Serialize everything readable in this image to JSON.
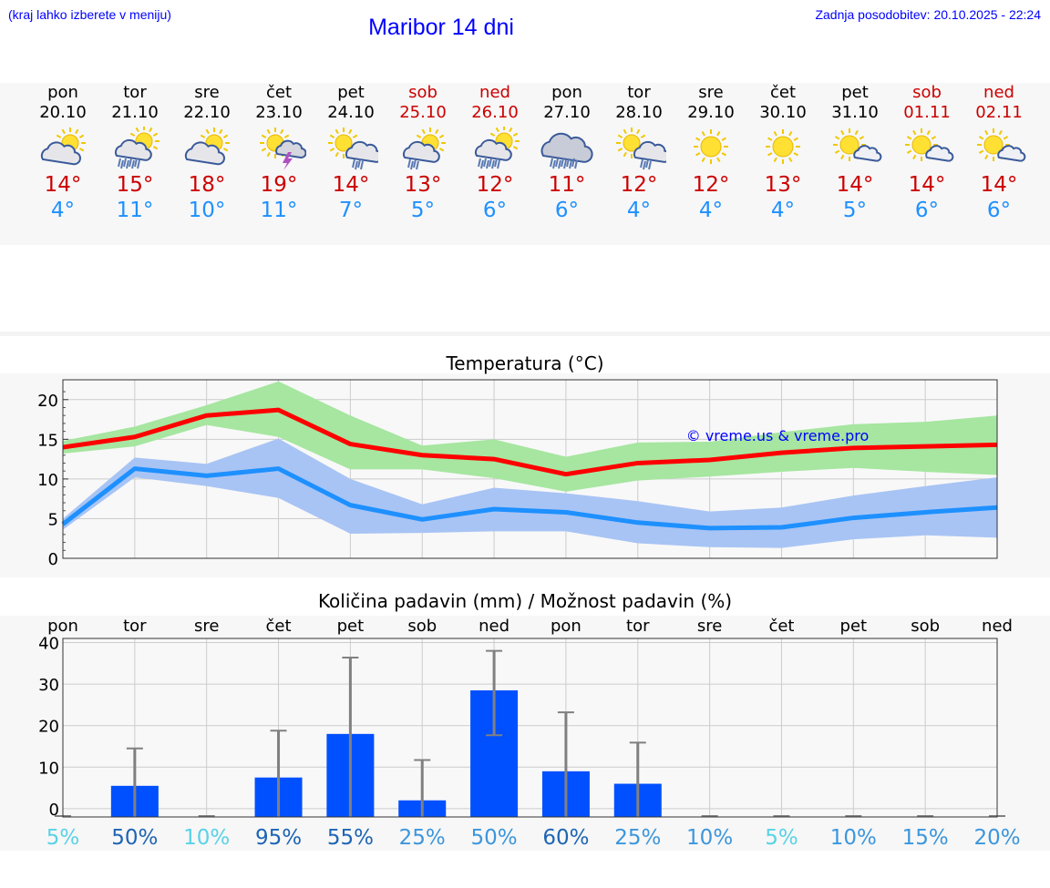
{
  "header": {
    "menu_hint": "(kraj lahko izberete v meniju)",
    "title": "Maribor 14 dni",
    "last_update": "Zadnja posodobitev: 20.10.2025 - 22:24"
  },
  "days": [
    {
      "name": "pon",
      "date": "20.10",
      "weekend": false,
      "icon": "partly-cloudy-icon",
      "max": "14°",
      "min": "4°"
    },
    {
      "name": "tor",
      "date": "21.10",
      "weekend": false,
      "icon": "cloudy-rain-sun-icon",
      "max": "15°",
      "min": "11°"
    },
    {
      "name": "sre",
      "date": "22.10",
      "weekend": false,
      "icon": "partly-cloudy-icon",
      "max": "18°",
      "min": "10°"
    },
    {
      "name": "čet",
      "date": "23.10",
      "weekend": false,
      "icon": "sun-thunderstorm-icon",
      "max": "19°",
      "min": "11°"
    },
    {
      "name": "pet",
      "date": "24.10",
      "weekend": false,
      "icon": "sun-cloud-rain-icon",
      "max": "14°",
      "min": "7°"
    },
    {
      "name": "sob",
      "date": "25.10",
      "weekend": true,
      "icon": "sun-cloud-light-rain-icon",
      "max": "13°",
      "min": "5°"
    },
    {
      "name": "ned",
      "date": "26.10",
      "weekend": true,
      "icon": "cloudy-rain-sun-icon",
      "max": "12°",
      "min": "6°"
    },
    {
      "name": "pon",
      "date": "27.10",
      "weekend": false,
      "icon": "heavy-rain-icon",
      "max": "11°",
      "min": "6°"
    },
    {
      "name": "tor",
      "date": "28.10",
      "weekend": false,
      "icon": "sun-cloud-rain-icon",
      "max": "12°",
      "min": "4°"
    },
    {
      "name": "sre",
      "date": "29.10",
      "weekend": false,
      "icon": "sun-icon",
      "max": "12°",
      "min": "4°"
    },
    {
      "name": "čet",
      "date": "30.10",
      "weekend": false,
      "icon": "sun-icon",
      "max": "13°",
      "min": "4°"
    },
    {
      "name": "pet",
      "date": "31.10",
      "weekend": false,
      "icon": "sun-small-cloud-icon",
      "max": "14°",
      "min": "5°"
    },
    {
      "name": "sob",
      "date": "01.11",
      "weekend": true,
      "icon": "sun-small-cloud-icon",
      "max": "14°",
      "min": "6°"
    },
    {
      "name": "ned",
      "date": "02.11",
      "weekend": true,
      "icon": "sun-small-cloud-icon",
      "max": "14°",
      "min": "6°"
    }
  ],
  "chart_data": [
    {
      "type": "line",
      "title": "Temperatura (°C)",
      "watermark": "© vreme.us & vreme.pro",
      "x": [
        0,
        1,
        2,
        3,
        4,
        5,
        6,
        7,
        8,
        9,
        10,
        11,
        12,
        13
      ],
      "ylim": [
        0,
        22.5
      ],
      "yticks": [
        0,
        5,
        10,
        15,
        20
      ],
      "grid": true,
      "series": [
        {
          "role": "max",
          "color": "#ff0000",
          "values": [
            14.0,
            15.3,
            18.0,
            18.7,
            14.4,
            13.0,
            12.5,
            10.6,
            12.0,
            12.4,
            13.3,
            13.9,
            14.1,
            14.3
          ],
          "band_low": [
            13.2,
            14.1,
            16.8,
            15.3,
            11.2,
            11.2,
            10.1,
            8.4,
            9.8,
            10.3,
            10.9,
            11.4,
            10.9,
            10.5
          ],
          "band_high": [
            14.8,
            16.6,
            19.3,
            22.3,
            18.0,
            14.2,
            15.0,
            12.8,
            14.6,
            14.7,
            15.9,
            16.9,
            17.2,
            18.0
          ],
          "band_color": "#a6e6a0"
        },
        {
          "role": "min",
          "color": "#1e90ff",
          "values": [
            4.3,
            11.3,
            10.4,
            11.3,
            6.7,
            4.9,
            6.2,
            5.8,
            4.5,
            3.8,
            3.9,
            5.1,
            5.8,
            6.4
          ],
          "band_low": [
            3.6,
            10.2,
            9.1,
            7.6,
            3.1,
            3.2,
            3.4,
            3.4,
            1.9,
            1.4,
            1.3,
            2.4,
            2.9,
            2.6
          ],
          "band_high": [
            5.0,
            12.7,
            11.9,
            15.1,
            10.0,
            6.8,
            8.9,
            8.2,
            7.2,
            5.9,
            6.4,
            7.9,
            9.1,
            10.2
          ],
          "band_color": "#a8c4f4"
        }
      ]
    },
    {
      "type": "bar",
      "title": "Količina padavin (mm) / Možnost padavin (%)",
      "categories": [
        "pon",
        "tor",
        "sre",
        "čet",
        "pet",
        "sob",
        "ned",
        "pon",
        "tor",
        "sre",
        "čet",
        "pet",
        "sob",
        "ned"
      ],
      "ylim": [
        -2,
        41
      ],
      "yticks": [
        0,
        10,
        20,
        30,
        40
      ],
      "grid": true,
      "bar_color": "#0050ff",
      "values": [
        0,
        5.5,
        0,
        7.5,
        18,
        2,
        28.5,
        9,
        6,
        0,
        0,
        0,
        0,
        0
      ],
      "error_high": [
        0,
        14.5,
        0,
        18.8,
        36.4,
        11.7,
        38.0,
        23.2,
        15.9,
        0,
        0,
        0,
        0,
        0
      ],
      "error_low": [
        0,
        0,
        0,
        0,
        0,
        0,
        17.7,
        0,
        0,
        0,
        0,
        0,
        0,
        0
      ],
      "error_color": "#808080",
      "probability": [
        "5%",
        "50%",
        "10%",
        "95%",
        "55%",
        "25%",
        "50%",
        "60%",
        "25%",
        "10%",
        "5%",
        "10%",
        "15%",
        "20%"
      ],
      "probability_colors": [
        "#5ad2e6",
        "#1e64b4",
        "#5ad2e6",
        "#1e64b4",
        "#1e64b4",
        "#3c96dc",
        "#3c96dc",
        "#1e64b4",
        "#3c96dc",
        "#3c96dc",
        "#5ad2e6",
        "#3c96dc",
        "#3c96dc",
        "#3c96dc"
      ]
    }
  ]
}
